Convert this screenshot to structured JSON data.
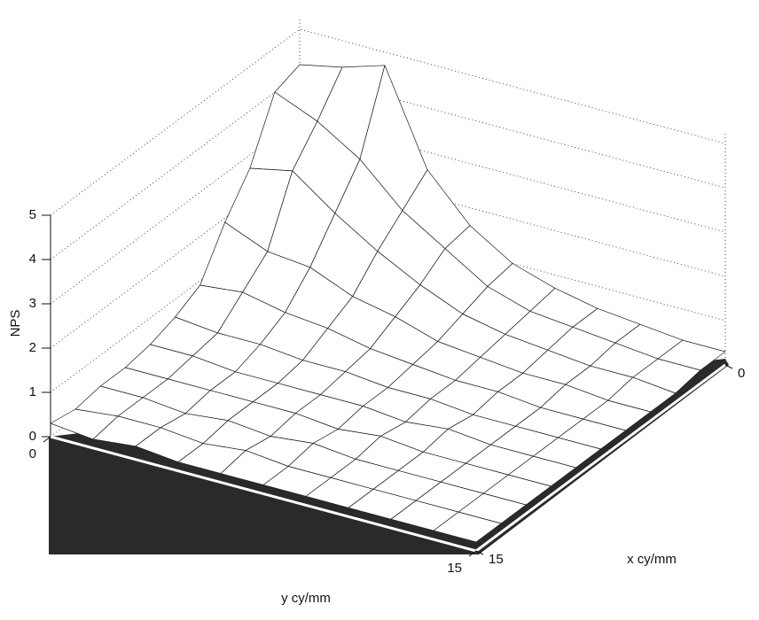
{
  "chart_data": {
    "type": "surface",
    "xlabel": "x cy/mm",
    "ylabel": "y cy/mm",
    "zlabel": "NPS",
    "x": [
      0,
      1.5,
      3,
      4.5,
      6,
      7.5,
      9,
      10.5,
      12,
      13.5,
      15
    ],
    "y": [
      0,
      1.5,
      3,
      4.5,
      6,
      7.5,
      9,
      10.5,
      12,
      13.5,
      15
    ],
    "z": [
      [
        4.2,
        4.0,
        2.7,
        1.9,
        0.9,
        0.6,
        0.4,
        0.3,
        0.3,
        0.2,
        0.3
      ],
      [
        4.4,
        3.6,
        2.9,
        1.5,
        1.0,
        0.5,
        0.4,
        0.3,
        0.3,
        0.3,
        0.2
      ],
      [
        4.7,
        3.0,
        2.2,
        1.4,
        0.8,
        0.5,
        0.3,
        0.3,
        0.2,
        0.3,
        0.3
      ],
      [
        2.6,
        2.1,
        1.6,
        1.0,
        0.7,
        0.4,
        0.3,
        0.3,
        0.3,
        0.2,
        0.2
      ],
      [
        1.6,
        1.5,
        1.1,
        0.8,
        0.5,
        0.4,
        0.3,
        0.3,
        0.2,
        0.3,
        0.2
      ],
      [
        1.0,
        0.9,
        0.7,
        0.5,
        0.4,
        0.3,
        0.3,
        0.2,
        0.3,
        0.2,
        0.2
      ],
      [
        0.7,
        0.6,
        0.5,
        0.4,
        0.3,
        0.3,
        0.2,
        0.3,
        0.2,
        0.2,
        0.2
      ],
      [
        0.5,
        0.5,
        0.4,
        0.3,
        0.3,
        0.2,
        0.3,
        0.2,
        0.2,
        0.2,
        0.2
      ],
      [
        0.4,
        0.4,
        0.3,
        0.3,
        0.2,
        0.2,
        0.2,
        0.2,
        0.2,
        0.2,
        0.2
      ],
      [
        0.3,
        0.3,
        0.3,
        0.2,
        0.2,
        0.2,
        0.2,
        0.2,
        0.2,
        0.2,
        0.2
      ],
      [
        0.3,
        0.3,
        0.2,
        0.2,
        0.2,
        0.2,
        0.2,
        0.2,
        0.2,
        0.2,
        0.2
      ]
    ],
    "xlim": [
      0,
      15
    ],
    "ylim": [
      0,
      15
    ],
    "zlim": [
      0,
      5
    ],
    "xticks": [
      0,
      15
    ],
    "yticks": [
      0,
      15
    ],
    "zticks": [
      0,
      1,
      2,
      3,
      4,
      5
    ],
    "grid": true
  }
}
